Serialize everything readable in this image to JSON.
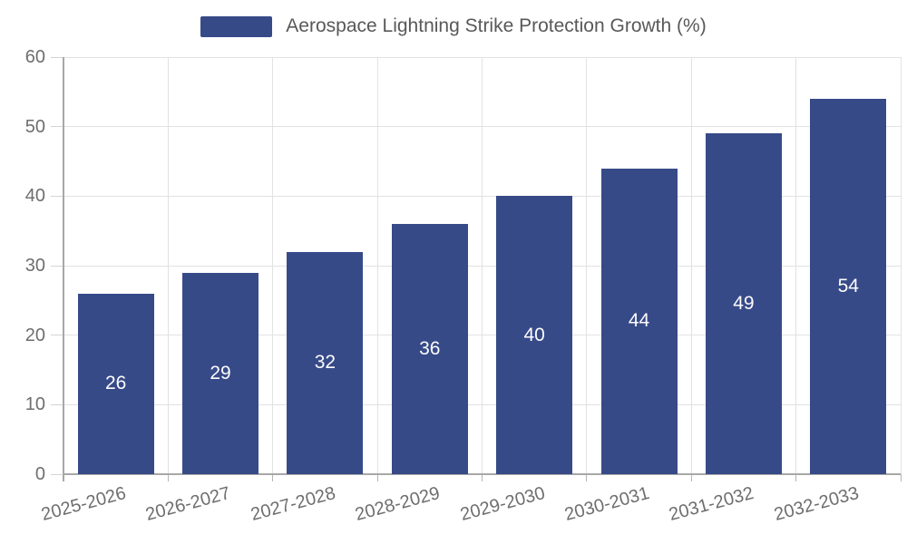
{
  "chart_data": {
    "type": "bar",
    "title": "Aerospace Lightning Strike Protection Growth (%)",
    "categories": [
      "2025-2026",
      "2026-2027",
      "2027-2028",
      "2028-2029",
      "2029-2030",
      "2030-2031",
      "2031-2032",
      "2032-2033"
    ],
    "values": [
      26,
      29,
      32,
      36,
      40,
      44,
      49,
      54
    ],
    "xlabel": "",
    "ylabel": "",
    "ylim": [
      0,
      60
    ],
    "yticks": [
      0,
      10,
      20,
      30,
      40,
      50,
      60
    ],
    "grid": true,
    "legend_position": "top",
    "value_labels": "inside-center",
    "colors": {
      "bar": "#374a88",
      "bar_value_label": "#fcfcfd",
      "legend_text": "#585858",
      "axis_label": "#6e6e6e",
      "gridline": "#e2e2e2",
      "axis_line": "#a8a8a8",
      "tick_y": "#d4d4d4",
      "tick_x": "#b5b5b5",
      "background": "#ffffff"
    }
  }
}
